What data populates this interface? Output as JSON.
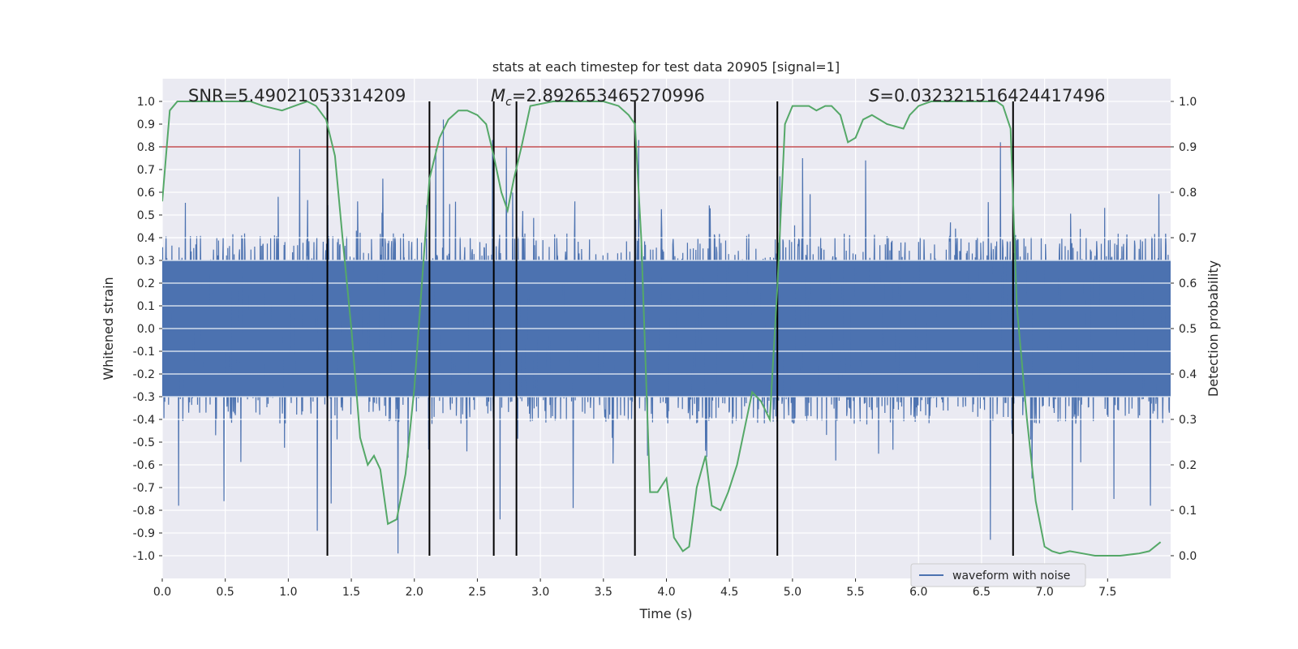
{
  "chart_data": {
    "type": "line",
    "title": "stats at each timestep for test data 20905 [signal=1]",
    "xlabel": "Time (s)",
    "ylabel_left": "Whitened strain",
    "ylabel_right": "Detection probability",
    "xlim": [
      0,
      8
    ],
    "ylim_left": [
      -1.1,
      1.1
    ],
    "ylim_right": [
      -0.05,
      1.05
    ],
    "x_ticks": [
      0,
      0.5,
      1,
      1.5,
      2,
      2.5,
      3,
      3.5,
      4,
      4.5,
      5,
      5.5,
      6,
      6.5,
      7,
      7.5
    ],
    "y_left_ticks": [
      -1.0,
      -0.9,
      -0.8,
      -0.7,
      -0.6,
      -0.5,
      -0.4,
      -0.3,
      -0.2,
      -0.1,
      0.0,
      0.1,
      0.2,
      0.3,
      0.4,
      0.5,
      0.6,
      0.7,
      0.8,
      0.9,
      1.0
    ],
    "y_right_ticks": [
      0.0,
      0.1,
      0.2,
      0.3,
      0.4,
      0.5,
      0.6,
      0.7,
      0.8,
      0.9,
      1.0
    ],
    "annotations": {
      "snr": "SNR=5.49021053314209",
      "mc_symbol": "M",
      "mc_sub": "c",
      "mc_value": "=2.892653465270996",
      "s_symbol": "S",
      "s_value": "=0.032321516424417496"
    },
    "threshold": {
      "value": 0.9,
      "axis": "right",
      "color": "#c44e52"
    },
    "event_lines_x": [
      1.31,
      2.12,
      2.63,
      2.81,
      3.75,
      4.88,
      6.75
    ],
    "series": [
      {
        "name": "waveform with noise",
        "axis": "left",
        "color": "#4c72b0",
        "envelope": {
          "typical_amplitude": 0.42,
          "peaks": [
            {
              "x": 0.13,
              "y": -0.78
            },
            {
              "x": 0.49,
              "y": -0.76
            },
            {
              "x": 0.92,
              "y": 0.58
            },
            {
              "x": 1.09,
              "y": 0.79
            },
            {
              "x": 1.23,
              "y": -0.89
            },
            {
              "x": 1.34,
              "y": -0.77
            },
            {
              "x": 1.55,
              "y": 0.56
            },
            {
              "x": 1.75,
              "y": 0.66
            },
            {
              "x": 1.87,
              "y": -0.99
            },
            {
              "x": 2.17,
              "y": 0.79
            },
            {
              "x": 2.23,
              "y": 0.92
            },
            {
              "x": 2.62,
              "y": 0.83
            },
            {
              "x": 2.68,
              "y": -0.84
            },
            {
              "x": 2.73,
              "y": 0.8
            },
            {
              "x": 3.26,
              "y": -0.79
            },
            {
              "x": 3.78,
              "y": 0.83
            },
            {
              "x": 3.85,
              "y": -0.56
            },
            {
              "x": 4.9,
              "y": 0.67
            },
            {
              "x": 5.08,
              "y": 0.75
            },
            {
              "x": 5.58,
              "y": 0.74
            },
            {
              "x": 6.57,
              "y": -0.93
            },
            {
              "x": 6.65,
              "y": 0.82
            },
            {
              "x": 6.9,
              "y": -0.66
            },
            {
              "x": 7.22,
              "y": -0.8
            },
            {
              "x": 7.55,
              "y": -0.75
            },
            {
              "x": 7.84,
              "y": -0.78
            }
          ]
        }
      },
      {
        "name": "detection probability",
        "axis": "right",
        "color": "#55a868",
        "x": [
          0.0,
          0.06,
          0.12,
          0.3,
          0.5,
          0.7,
          0.8,
          0.95,
          1.05,
          1.15,
          1.22,
          1.3,
          1.37,
          1.43,
          1.5,
          1.57,
          1.63,
          1.68,
          1.73,
          1.79,
          1.86,
          1.93,
          2.0,
          2.06,
          2.12,
          2.2,
          2.27,
          2.35,
          2.42,
          2.5,
          2.57,
          2.63,
          2.69,
          2.74,
          2.79,
          2.85,
          2.92,
          3.1,
          3.3,
          3.5,
          3.62,
          3.7,
          3.75,
          3.8,
          3.87,
          3.93,
          4.0,
          4.06,
          4.13,
          4.18,
          4.24,
          4.31,
          4.36,
          4.43,
          4.49,
          4.56,
          4.68,
          4.75,
          4.82,
          4.88,
          4.94,
          5.0,
          5.07,
          5.13,
          5.19,
          5.26,
          5.31,
          5.38,
          5.44,
          5.5,
          5.56,
          5.63,
          5.69,
          5.75,
          5.88,
          5.93,
          6.0,
          6.1,
          6.3,
          6.5,
          6.62,
          6.67,
          6.73,
          6.78,
          6.86,
          6.93,
          7.0,
          7.06,
          7.12,
          7.2,
          7.3,
          7.4,
          7.5,
          7.6,
          7.75,
          7.83,
          7.92
        ],
        "y": [
          0.78,
          0.98,
          1.0,
          1.0,
          1.0,
          1.0,
          0.99,
          0.98,
          0.99,
          1.0,
          0.99,
          0.96,
          0.88,
          0.7,
          0.5,
          0.26,
          0.2,
          0.22,
          0.19,
          0.07,
          0.08,
          0.18,
          0.37,
          0.6,
          0.83,
          0.92,
          0.96,
          0.98,
          0.98,
          0.97,
          0.95,
          0.88,
          0.8,
          0.76,
          0.83,
          0.9,
          0.99,
          1.0,
          1.0,
          1.0,
          0.99,
          0.97,
          0.95,
          0.7,
          0.14,
          0.14,
          0.17,
          0.04,
          0.01,
          0.02,
          0.15,
          0.22,
          0.11,
          0.1,
          0.14,
          0.2,
          0.36,
          0.34,
          0.3,
          0.59,
          0.95,
          0.99,
          0.99,
          0.99,
          0.98,
          0.99,
          0.99,
          0.97,
          0.91,
          0.92,
          0.96,
          0.97,
          0.96,
          0.95,
          0.94,
          0.97,
          0.99,
          1.0,
          1.0,
          1.0,
          1.0,
          0.99,
          0.94,
          0.55,
          0.3,
          0.12,
          0.02,
          0.01,
          0.005,
          0.01,
          0.005,
          0.0,
          0.0,
          0.0,
          0.005,
          0.01,
          0.03
        ]
      }
    ],
    "legend": {
      "position": "lower-right",
      "entries": [
        "waveform with noise"
      ]
    },
    "colors": {
      "background": "#eaeaf2",
      "grid": "#ffffff",
      "event_line": "#000000"
    }
  }
}
